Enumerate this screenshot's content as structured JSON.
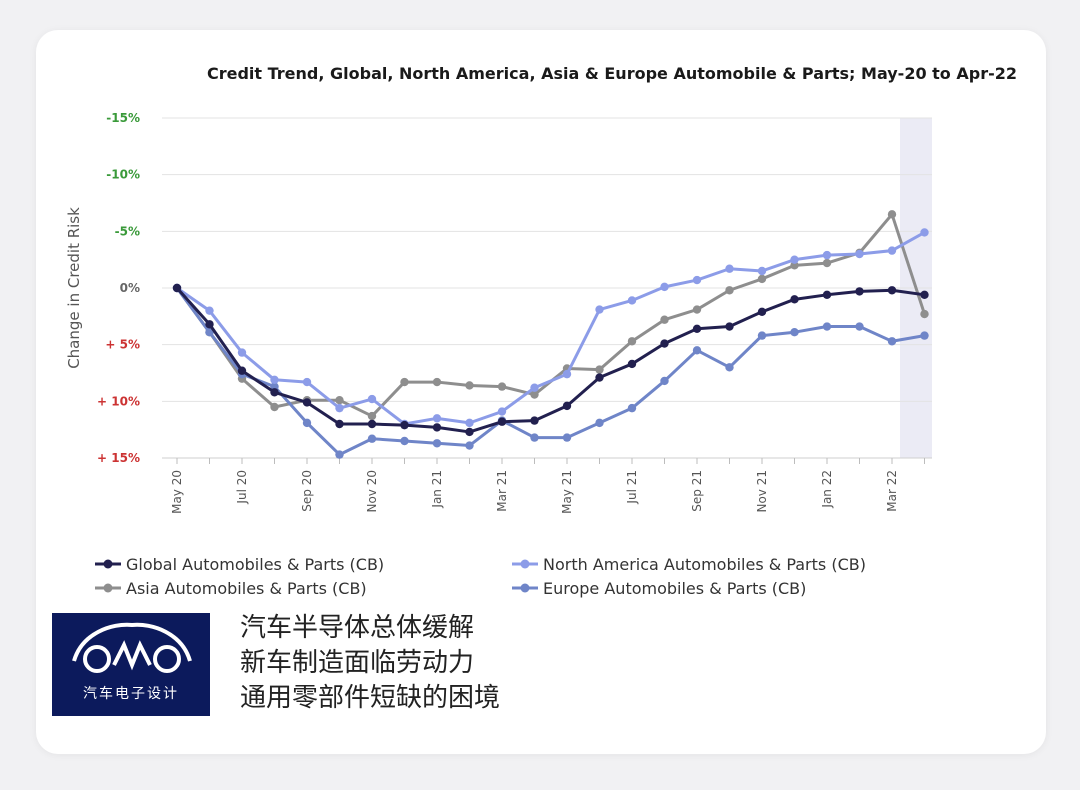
{
  "chart_data": {
    "type": "line",
    "title": "Credit Trend, Global, North America, Asia & Europe Automobile & Parts; May-20 to Apr-22",
    "ylabel": "Change in Credit Risk",
    "xlabel": "",
    "ylim": [
      15,
      -15
    ],
    "y_ticks": [
      {
        "value": -15,
        "label": "-15%",
        "color": "#3a9a3a"
      },
      {
        "value": -10,
        "label": "-10%",
        "color": "#3a9a3a"
      },
      {
        "value": -5,
        "label": "-5%",
        "color": "#3a9a3a"
      },
      {
        "value": 0,
        "label": "0%",
        "color": "#666666"
      },
      {
        "value": 5,
        "label": "+ 5%",
        "color": "#cc3333"
      },
      {
        "value": 10,
        "label": "+ 10%",
        "color": "#cc3333"
      },
      {
        "value": 15,
        "label": "+ 15%",
        "color": "#cc3333"
      }
    ],
    "x_tick_labels": [
      "May 20",
      "Jul 20",
      "Sep 20",
      "Nov 20",
      "Jan 21",
      "Mar 21",
      "May 21",
      "Jul 21",
      "Sep 21",
      "Nov 21",
      "Jan 22",
      "Mar 22"
    ],
    "grid": true,
    "legend_position": "bottom",
    "highlight_last_period": true,
    "series": [
      {
        "name": "Global Automobiles & Parts (CB)",
        "color": "#22204f",
        "values": [
          0,
          3.2,
          7.3,
          9.2,
          10.1,
          12.0,
          12.0,
          12.1,
          12.3,
          12.7,
          11.8,
          11.7,
          10.4,
          7.9,
          6.7,
          4.9,
          3.6,
          3.4,
          2.1,
          1.0,
          0.6,
          0.3,
          0.2,
          0.6
        ]
      },
      {
        "name": "North America Automobiles & Parts (CB)",
        "color": "#8c9ce8",
        "values": [
          0,
          2.0,
          5.7,
          8.1,
          8.3,
          10.6,
          9.8,
          12.0,
          11.5,
          11.9,
          10.9,
          8.8,
          7.6,
          1.9,
          1.1,
          -0.1,
          -0.7,
          -1.7,
          -1.5,
          -2.5,
          -2.9,
          -3.0,
          -3.3,
          -4.9
        ]
      },
      {
        "name": "Asia Automobiles & Parts (CB)",
        "color": "#8e8e8e",
        "values": [
          0,
          3.9,
          8.0,
          10.5,
          9.9,
          9.9,
          11.3,
          8.3,
          8.3,
          8.6,
          8.7,
          9.4,
          7.1,
          7.2,
          4.7,
          2.8,
          1.9,
          0.2,
          -0.8,
          -2.0,
          -2.2,
          -3.1,
          -6.5,
          2.3
        ]
      },
      {
        "name": "Europe Automobiles & Parts (CB)",
        "color": "#6f85c8",
        "values": [
          0,
          3.9,
          7.6,
          8.7,
          11.9,
          14.7,
          13.3,
          13.5,
          13.7,
          13.9,
          11.7,
          13.2,
          13.2,
          11.9,
          10.6,
          8.2,
          5.5,
          7.0,
          4.2,
          3.9,
          3.4,
          3.4,
          4.7,
          4.2
        ]
      }
    ]
  },
  "caption": {
    "line1": "汽车半导体总体缓解",
    "line2": "新车制造面临劳动力",
    "line3": "通用零部件短缺的困境"
  },
  "logo": {
    "text": "汽车电子设计"
  }
}
